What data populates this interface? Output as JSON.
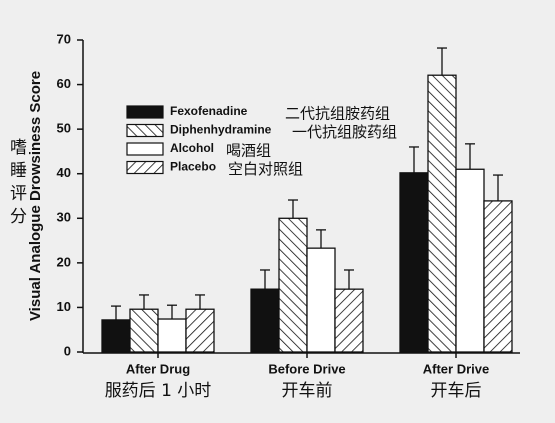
{
  "chart_data": {
    "type": "bar",
    "ylabel": "Visual Analogue Drowsiness Score",
    "ylabel_zh": "嗜睡评分",
    "categories": [
      "After Drug",
      "Before Drive",
      "After Drive"
    ],
    "categories_zh": [
      "服药后 1 小时",
      "开车前",
      "开车后"
    ],
    "series": [
      {
        "name": "Fexofenadine",
        "name_zh": "二代抗组胺药组",
        "color": "#111111",
        "hatch": "none",
        "values": [
          7.2,
          14.1,
          40.2
        ],
        "errors": [
          3.1,
          4.3,
          5.8
        ]
      },
      {
        "name": "Diphenhydramine",
        "name_zh": "一代抗组胺药组",
        "color": "#ffffff",
        "hatch": "backslash",
        "values": [
          9.6,
          30,
          62.1
        ],
        "errors": [
          3.2,
          4.1,
          6.1
        ]
      },
      {
        "name": "Alcohol",
        "name_zh": "喝酒组",
        "color": "#ffffff",
        "hatch": "none",
        "values": [
          7.4,
          23.3,
          41
        ],
        "errors": [
          3.1,
          4.1,
          5.7
        ]
      },
      {
        "name": "Placebo",
        "name_zh": "空白对照组",
        "color": "#ffffff",
        "hatch": "slash",
        "values": [
          9.6,
          14.1,
          33.9
        ],
        "errors": [
          3.2,
          4.3,
          5.8
        ]
      }
    ],
    "ylim": [
      0,
      70
    ],
    "yticks": [
      0,
      10,
      20,
      30,
      40,
      50,
      60,
      70
    ],
    "grid": false,
    "legend": "upper left"
  }
}
